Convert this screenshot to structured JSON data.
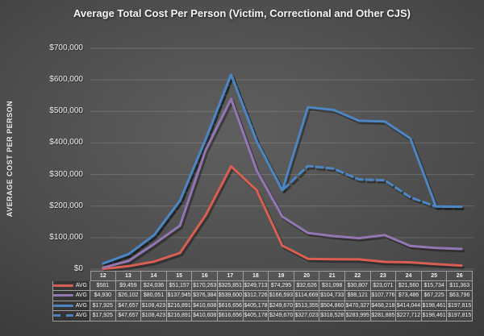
{
  "chart": {
    "title": "Average Total Cost Per Person (Victim, Correctional and Other CJS)"
  },
  "y_axis": {
    "title": "AVERAGE COST PER PERSON",
    "tick_labels": [
      "$0",
      "$100,000",
      "$200,000",
      "$300,000",
      "$400,000",
      "$500,000",
      "$600,000",
      "$700,000"
    ]
  },
  "chart_data": {
    "type": "line",
    "title": "Average Total Cost Per Person (Victim, Correctional and Other CJS)",
    "xlabel": "",
    "ylabel": "AVERAGE COST PER PERSON",
    "x": [
      12,
      13,
      14,
      15,
      16,
      17,
      18,
      19,
      20,
      21,
      22,
      23,
      24,
      25,
      26
    ],
    "ylim": [
      0,
      700000
    ],
    "grid": true,
    "legend_position": "table-row-headers",
    "series": [
      {
        "name": "AVG",
        "key": "avg-red-solid",
        "style": "solid",
        "color": "#d85f52",
        "values": [
          581,
          9459,
          24036,
          51157,
          170263,
          325851,
          249713,
          74295,
          32626,
          31098,
          30807,
          23071,
          21560,
          15734,
          11363
        ]
      },
      {
        "name": "AVG",
        "key": "avg-purple-solid",
        "style": "solid",
        "color": "#9377b5",
        "values": [
          4930,
          26102,
          80051,
          137945,
          376384,
          539600,
          312726,
          166593,
          114669,
          104733,
          98121,
          107776,
          73486,
          67225,
          63796
        ]
      },
      {
        "name": "AVG",
        "key": "avg-blue-solid",
        "style": "solid",
        "color": "#4c86c2",
        "values": [
          17925,
          47657,
          108423,
          216891,
          410608,
          616656,
          405178,
          249670,
          513355,
          504860,
          470327,
          468218,
          414044,
          198461,
          197815
        ]
      },
      {
        "name": "AVG",
        "key": "avg-blue-dashed",
        "style": "dashed",
        "color": "#4c86c2",
        "values": [
          17925,
          47657,
          108423,
          216891,
          410608,
          616656,
          405178,
          249670,
          327023,
          318528,
          283995,
          281885,
          227712,
          198461,
          197815
        ]
      }
    ]
  },
  "table": {
    "column_headers": [
      "12",
      "13",
      "14",
      "15",
      "16",
      "17",
      "18",
      "19",
      "20",
      "21",
      "22",
      "23",
      "24",
      "25",
      "26"
    ],
    "rows": [
      {
        "legend": "AVG",
        "color": "#d85f52",
        "style": "solid",
        "cells": [
          "$581",
          "$9,459",
          "$24,036",
          "$51,157",
          "$170,263",
          "$325,851",
          "$249,713",
          "$74,295",
          "$32,626",
          "$31,098",
          "$30,807",
          "$23,071",
          "$21,560",
          "$15,734",
          "$11,363"
        ]
      },
      {
        "legend": "AVG",
        "color": "#9377b5",
        "style": "solid",
        "cells": [
          "$4,930",
          "$26,102",
          "$80,051",
          "$137,945",
          "$376,384",
          "$539,600",
          "$312,726",
          "$166,593",
          "$114,669",
          "$104,733",
          "$98,121",
          "$107,776",
          "$73,486",
          "$67,225",
          "$63,796"
        ]
      },
      {
        "legend": "AVG",
        "color": "#4c86c2",
        "style": "solid",
        "cells": [
          "$17,925",
          "$47,657",
          "$108,423",
          "$216,891",
          "$410,608",
          "$616,656",
          "$405,178",
          "$249,670",
          "$513,355",
          "$504,860",
          "$470,327",
          "$468,218",
          "$414,044",
          "$198,461",
          "$197,815"
        ]
      },
      {
        "legend": "AVG",
        "color": "#4c86c2",
        "style": "dashed",
        "cells": [
          "$17,925",
          "$47,657",
          "$108,423",
          "$216,891",
          "$410,608",
          "$616,656",
          "$405,178",
          "$249,670",
          "$327,023",
          "$318,528",
          "$283,995",
          "$281,885",
          "$227,712",
          "$198,461",
          "$197,815"
        ]
      }
    ]
  },
  "colors": {
    "background_center": "#5f5f5f",
    "background_edge": "#383838",
    "gridline": "rgba(255,255,255,0.16)",
    "table_border": "#9f9f9f",
    "text": "#f2f2f2",
    "series_red": "#d85f52",
    "series_purple": "#9377b5",
    "series_blue": "#4c86c2"
  }
}
